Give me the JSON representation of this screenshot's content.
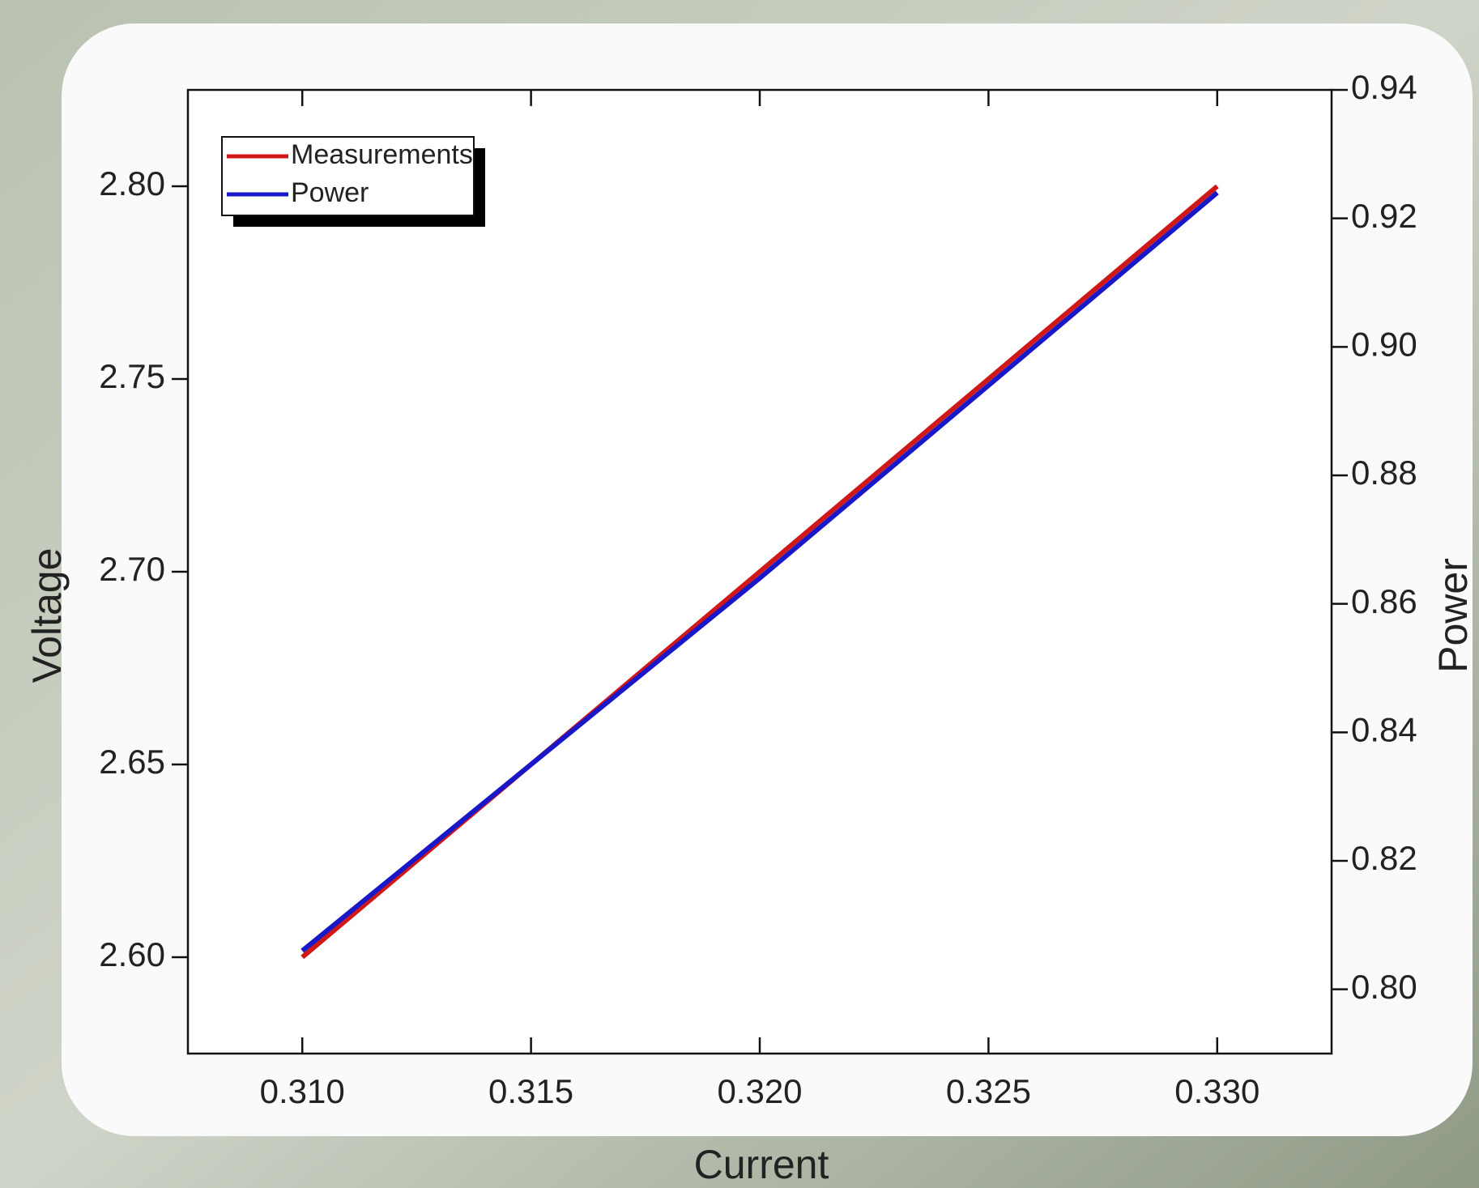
{
  "chart_data": {
    "type": "line",
    "x_label": "Current",
    "y_label": "Voltage",
    "y2_label": "Power",
    "x": [
      0.31,
      0.315,
      0.32,
      0.325,
      0.33
    ],
    "series": [
      {
        "name": "Measurements",
        "color": "#d01818",
        "values": [
          2.6,
          2.65,
          2.7,
          2.75,
          2.8
        ]
      },
      {
        "name": "Power",
        "color": "#1818c8",
        "axis": "y2",
        "values": [
          0.806,
          0.835,
          0.864,
          0.894,
          0.924
        ]
      }
    ],
    "xlim": [
      0.3075,
      0.3325
    ],
    "xticks": [
      {
        "value": 0.31,
        "label": "0.310"
      },
      {
        "value": 0.315,
        "label": "0.315"
      },
      {
        "value": 0.32,
        "label": "0.320"
      },
      {
        "value": 0.325,
        "label": "0.325"
      },
      {
        "value": 0.33,
        "label": "0.330"
      }
    ],
    "ylim": [
      2.575,
      2.825
    ],
    "yticks": [
      {
        "value": 2.6,
        "label": "2.60"
      },
      {
        "value": 2.65,
        "label": "2.65"
      },
      {
        "value": 2.7,
        "label": "2.70"
      },
      {
        "value": 2.75,
        "label": "2.75"
      },
      {
        "value": 2.8,
        "label": "2.80"
      }
    ],
    "y2lim": [
      0.79,
      0.94
    ],
    "y2ticks": [
      {
        "value": 0.8,
        "label": "0.80"
      },
      {
        "value": 0.82,
        "label": "0.82"
      },
      {
        "value": 0.84,
        "label": "0.84"
      },
      {
        "value": 0.86,
        "label": "0.86"
      },
      {
        "value": 0.88,
        "label": "0.88"
      },
      {
        "value": 0.9,
        "label": "0.90"
      },
      {
        "value": 0.92,
        "label": "0.92"
      },
      {
        "value": 0.94,
        "label": "0.94"
      }
    ],
    "legend": "upper left",
    "grid": false
  }
}
